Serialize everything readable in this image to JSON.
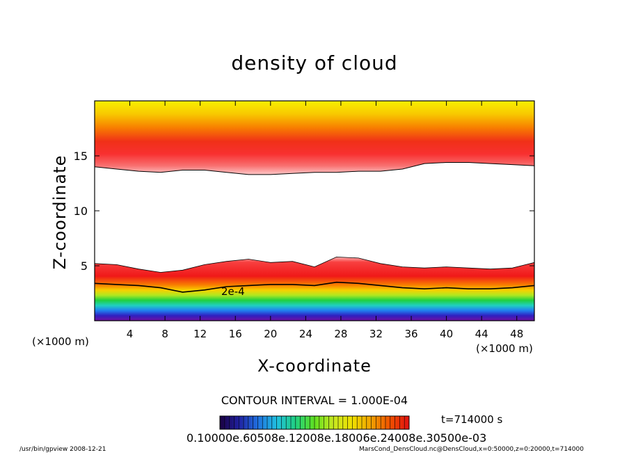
{
  "chart_data": {
    "type": "heatmap",
    "title": "density of cloud",
    "xlabel": "X-coordinate",
    "ylabel": "Z-coordinate",
    "x_unit": "(×1000 m)",
    "y_unit": "(×1000 m)",
    "xlim": [
      0,
      50
    ],
    "ylim": [
      0,
      20
    ],
    "x_ticks": [
      4,
      8,
      12,
      16,
      20,
      24,
      28,
      32,
      36,
      40,
      44,
      48
    ],
    "y_ticks": [
      5,
      10,
      15
    ],
    "contour_label": "2e-4",
    "contour_interval": "CONTOUR INTERVAL = 1.000E-04",
    "time": "t=714000 s",
    "colorbar_labels": "0.10000e.60508e.12008e.18006e.24008e.30500e-03",
    "colorbar_colors": [
      "#1a0040",
      "#2020a0",
      "#2070e0",
      "#20c0e0",
      "#20d080",
      "#60e020",
      "#c8e820",
      "#f0e000",
      "#f0a000",
      "#f05000",
      "#e01010"
    ],
    "lower_layer_top_km": [
      5.2,
      5.1,
      4.7,
      4.4,
      4.6,
      5.1,
      5.4,
      5.6,
      5.3,
      5.4,
      4.9,
      5.8,
      5.7,
      5.2,
      4.9,
      4.8,
      4.9,
      4.8,
      4.7,
      4.8,
      5.3
    ],
    "contour_2e4_km": [
      3.4,
      3.3,
      3.2,
      3.0,
      2.6,
      2.8,
      3.1,
      3.2,
      3.3,
      3.3,
      3.2,
      3.5,
      3.4,
      3.2,
      3.0,
      2.9,
      3.0,
      2.9,
      2.9,
      3.0,
      3.2
    ],
    "upper_layer_base_km": [
      14.0,
      13.8,
      13.6,
      13.5,
      13.7,
      13.7,
      13.5,
      13.3,
      13.3,
      13.4,
      13.5,
      13.5,
      13.6,
      13.6,
      13.8,
      14.3,
      14.4,
      14.4,
      14.3,
      14.2,
      14.1
    ]
  },
  "footer_left": "/usr/bin/gpview   2008-12-21",
  "footer_right": "MarsCond_DensCloud.nc@DensCloud,x=0:50000,z=0:20000,t=714000"
}
